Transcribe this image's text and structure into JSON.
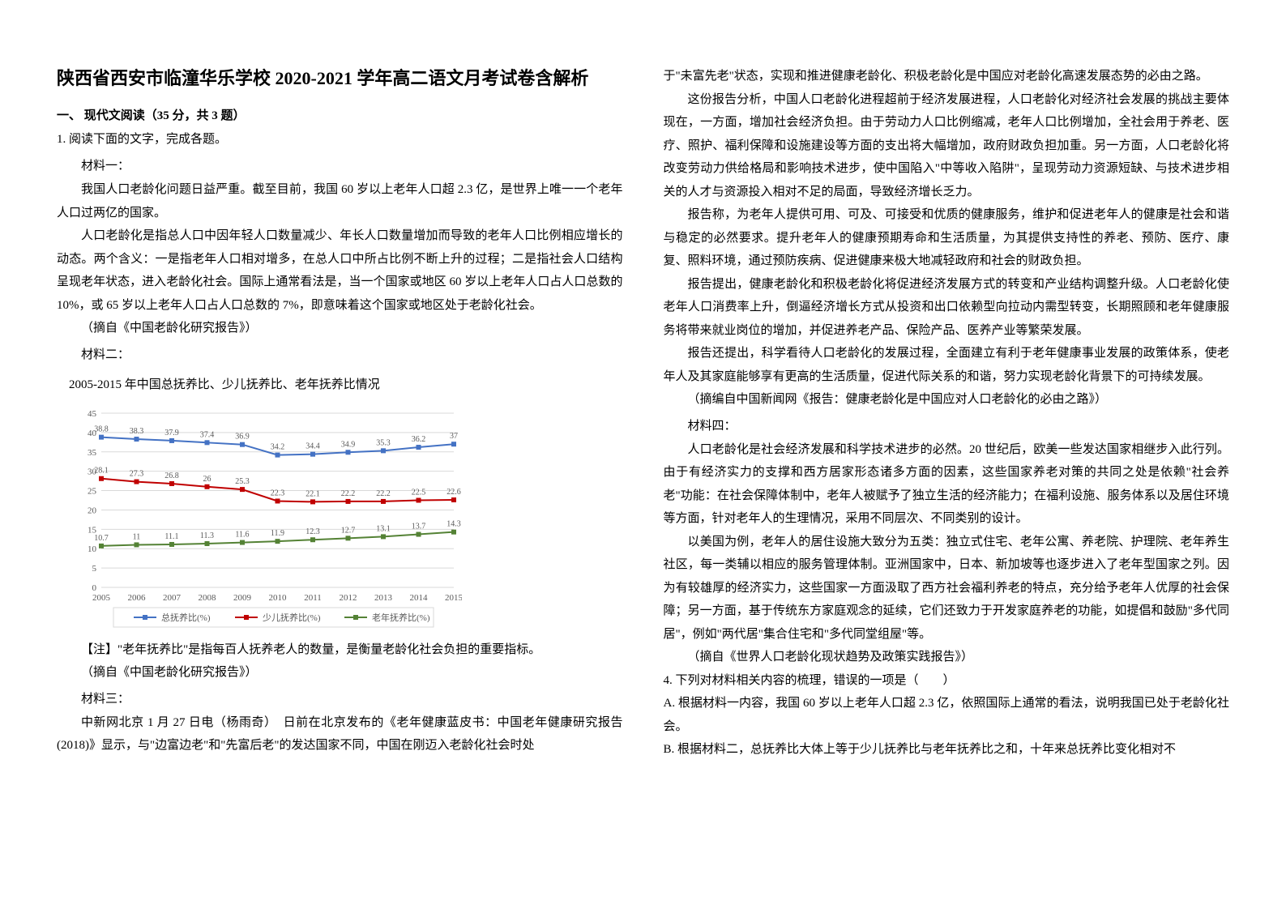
{
  "title": "陕西省西安市临潼华乐学校 2020-2021 学年高二语文月考试卷含解析",
  "section1": "一、 现代文阅读（35 分，共 3 题）",
  "q1": "1. 阅读下面的文字，完成各题。",
  "mat1_label": "材料一：",
  "mat1_p1": "我国人口老龄化问题日益严重。截至目前，我国 60 岁以上老年人口超 2.3 亿，是世界上唯一一个老年人口过两亿的国家。",
  "mat1_p2": "人口老龄化是指总人口中因年轻人口数量减少、年长人口数量增加而导致的老年人口比例相应增长的动态。两个含义：一是指老年人口相对增多，在总人口中所占比例不断上升的过程；二是指社会人口结构呈现老年状态，进入老龄化社会。国际上通常看法是，当一个国家或地区 60 岁以上老年人口占人口总数的 10%，或 65 岁以上老年人口占人口总数的 7%，即意味着这个国家或地区处于老龄化社会。",
  "mat1_source": "（摘自《中国老龄化研究报告》）",
  "mat2_label": "材料二：",
  "chart_title": "2005-2015 年中国总抚养比、少儿抚养比、老年抚养比情况",
  "chart": {
    "type": "line",
    "years": [
      "2005",
      "2006",
      "2007",
      "2008",
      "2009",
      "2010",
      "2011",
      "2012",
      "2013",
      "2014",
      "2015"
    ],
    "series": [
      {
        "name": "总抚养比(%)",
        "color": "#4472c4",
        "marker": "rect",
        "values": [
          38.8,
          38.3,
          37.9,
          37.4,
          36.9,
          34.2,
          34.4,
          34.9,
          35.3,
          36.2,
          37
        ]
      },
      {
        "name": "少儿抚养比(%)",
        "color": "#c00000",
        "marker": "rect",
        "values": [
          28.1,
          27.3,
          26.8,
          26,
          25.3,
          22.3,
          22.1,
          22.2,
          22.2,
          22.5,
          22.6
        ]
      },
      {
        "name": "老年抚养比(%)",
        "color": "#548235",
        "marker": "rect",
        "values": [
          10.7,
          11,
          11.1,
          11.3,
          11.6,
          11.9,
          12.3,
          12.7,
          13.1,
          13.7,
          14.3
        ]
      }
    ],
    "ylim": [
      0,
      45
    ],
    "ytick_step": 5,
    "grid_color": "#d9d9d9",
    "text_color": "#595959",
    "label_fontsize": 11
  },
  "legend_items": [
    "总抚养比(%)",
    "少儿抚养比(%)",
    "老年抚养比(%)"
  ],
  "legend_colors": [
    "#4472c4",
    "#c00000",
    "#548235"
  ],
  "note": "【注】\"老年抚养比\"是指每百人抚养老人的数量，是衡量老龄化社会负担的重要指标。",
  "mat2_source": "（摘自《中国老龄化研究报告》）",
  "mat3_label": "材料三：",
  "mat3_p1": "中新网北京 1 月 27 日电（杨雨奇）　日前在北京发布的《老年健康蓝皮书：中国老年健康研究报告(2018)》显示，与\"边富边老\"和\"先富后老\"的发达国家不同，中国在刚迈入老龄化社会时处",
  "col2_p1": "于\"未富先老\"状态，实现和推进健康老龄化、积极老龄化是中国应对老龄化高速发展态势的必由之路。",
  "col2_p2": "这份报告分析，中国人口老龄化进程超前于经济发展进程，人口老龄化对经济社会发展的挑战主要体现在，一方面，增加社会经济负担。由于劳动力人口比例缩减，老年人口比例增加，全社会用于养老、医疗、照护、福利保障和设施建设等方面的支出将大幅增加，政府财政负担加重。另一方面，人口老龄化将改变劳动力供给格局和影响技术进步，使中国陷入\"中等收入陷阱\"，呈现劳动力资源短缺、与技术进步相关的人才与资源投入相对不足的局面，导致经济增长乏力。",
  "col2_p3": "报告称，为老年人提供可用、可及、可接受和优质的健康服务，维护和促进老年人的健康是社会和谐与稳定的必然要求。提升老年人的健康预期寿命和生活质量，为其提供支持性的养老、预防、医疗、康复、照料环境，通过预防疾病、促进健康来极大地减轻政府和社会的财政负担。",
  "col2_p4": "报告提出，健康老龄化和积极老龄化将促进经济发展方式的转变和产业结构调整升级。人口老龄化使老年人口消费率上升，倒逼经济增长方式从投资和出口依赖型向拉动内需型转变，长期照顾和老年健康服务将带来就业岗位的增加，并促进养老产品、保险产品、医养产业等繁荣发展。",
  "col2_p5": "报告还提出，科学看待人口老龄化的发展过程，全面建立有利于老年健康事业发展的政策体系，使老年人及其家庭能够享有更高的生活质量，促进代际关系的和谐，努力实现老龄化背景下的可持续发展。",
  "mat3_source": "（摘编自中国新闻网《报告：健康老龄化是中国应对人口老龄化的必由之路》）",
  "mat4_label": "材料四：",
  "mat4_p1": "人口老龄化是社会经济发展和科学技术进步的必然。20 世纪后，欧美一些发达国家相继步入此行列。由于有经济实力的支撑和西方居家形态诸多方面的因素，这些国家养老对策的共同之处是依赖\"社会养老\"功能：在社会保障体制中，老年人被赋予了独立生活的经济能力；在福利设施、服务体系以及居住环境等方面，针对老年人的生理情况，采用不同层次、不同类别的设计。",
  "mat4_p2": "以美国为例，老年人的居住设施大致分为五类：独立式住宅、老年公寓、养老院、护理院、老年养生社区，每一类辅以相应的服务管理体制。亚洲国家中，日本、新加坡等也逐步进入了老年型国家之列。因为有较雄厚的经济实力，这些国家一方面汲取了西方社会福利养老的特点，充分给予老年人优厚的社会保障；另一方面，基于传统东方家庭观念的延续，它们还致力于开发家庭养老的功能，如提倡和鼓励\"多代同居\"，例如\"两代居\"集合住宅和\"多代同堂组屋\"等。",
  "mat4_source": "（摘自《世界人口老龄化现状趋势及政策实践报告》）",
  "q4": "4. 下列对材料相关内容的梳理，错误的一项是（　　）",
  "optA": "A. 根据材料一内容，我国 60 岁以上老年人口超 2.3 亿，依照国际上通常的看法，说明我国已处于老龄化社会。",
  "optB": "B. 根据材料二，总抚养比大体上等于少儿抚养比与老年抚养比之和，十年来总抚养比变化相对不"
}
